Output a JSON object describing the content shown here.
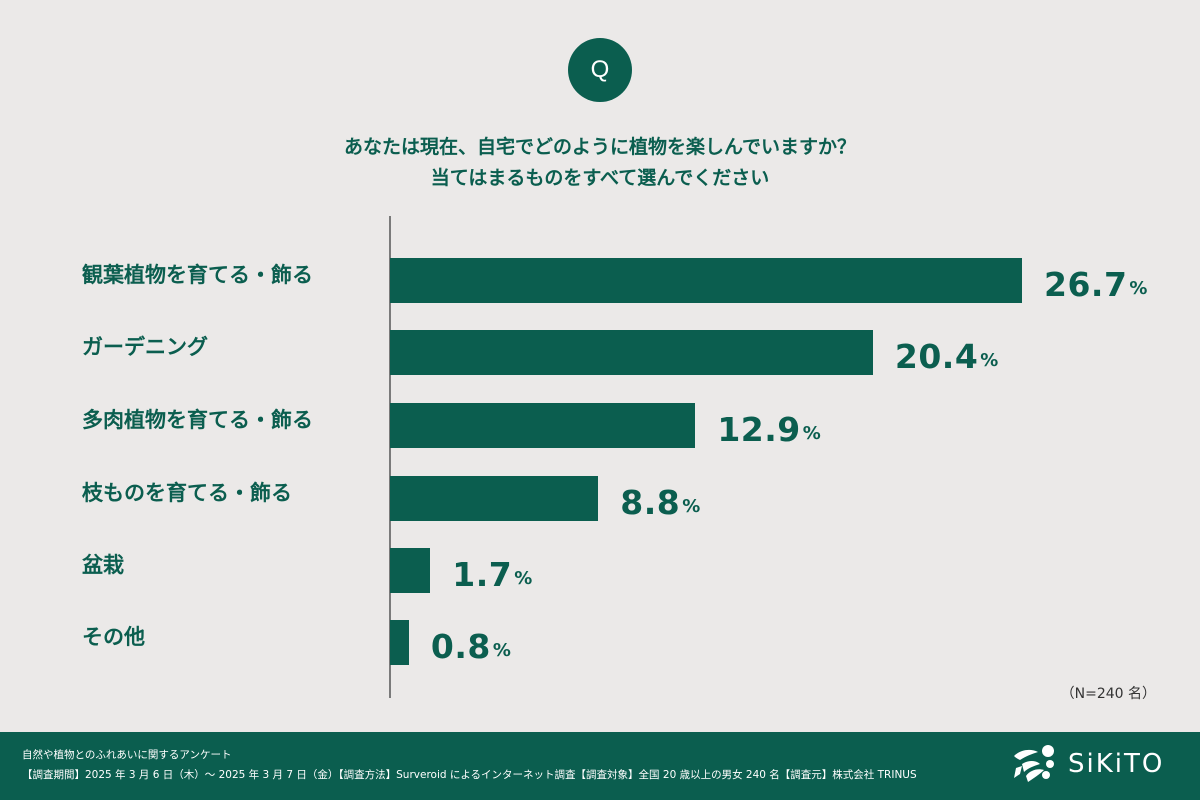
{
  "header": {
    "badge": "Q",
    "question_line1": "あなたは現在、自宅でどのように植物を楽しんでいますか？",
    "question_line2": "当てはまるものをすべて選んでください"
  },
  "chart_data": {
    "type": "bar",
    "orientation": "horizontal",
    "title": "あなたは現在、自宅でどのように植物を楽しんでいますか？当てはまるものをすべて選んでください",
    "categories": [
      "観葉植物を育てる・飾る",
      "ガーデニング",
      "多肉植物を育てる・飾る",
      "枝ものを育てる・飾る",
      "盆栽",
      "その他"
    ],
    "values": [
      26.7,
      20.4,
      12.9,
      8.8,
      1.7,
      0.8
    ],
    "value_labels": [
      "26.7",
      "20.4",
      "12.9",
      "8.8",
      "1.7",
      "0.8"
    ],
    "unit": "%",
    "xlabel": "",
    "ylabel": "",
    "grid": false,
    "legend": null,
    "bar_color": "#0b5e4f",
    "sample_note": "（N=240 名）"
  },
  "footer": {
    "survey_title": "自然や植物とのふれあいに関するアンケート",
    "survey_details": "【調査期間】2025 年 3 月 6 日（木）～ 2025 年 3 月 7 日（金）【調査方法】Surveroid によるインターネット調査【調査対象】全国 20 歳以上の男女 240 名【調査元】株式会社 TRINUS",
    "logo_text": "SiKiTO"
  },
  "colors": {
    "background": "#ebe9e8",
    "accent": "#0b5e4f",
    "footer_bg": "#0b5e4f"
  }
}
